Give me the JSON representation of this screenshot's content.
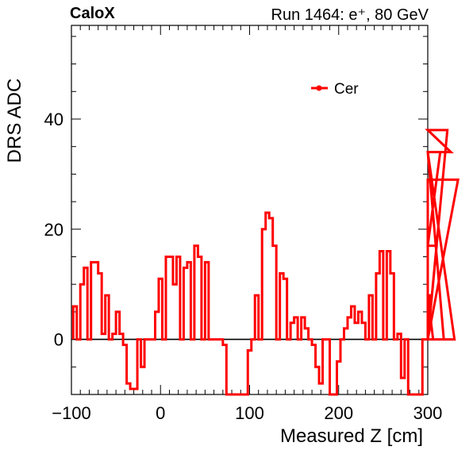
{
  "header": {
    "experiment": "CaloX",
    "run": "Run 1464: e⁺, 80 GeV"
  },
  "chart_data": {
    "type": "line",
    "title": "",
    "xlabel": "Measured Z [cm]",
    "ylabel": "DRS ADC",
    "xlim": [
      -100,
      300
    ],
    "ylim": [
      -10,
      57
    ],
    "x_ticks": [
      -100,
      0,
      100,
      200,
      300
    ],
    "x_tick_labels": [
      "−100",
      "0",
      "100",
      "200",
      "300"
    ],
    "y_ticks": [
      0,
      20,
      40
    ],
    "y_tick_labels": [
      "0",
      "20",
      "40"
    ],
    "grid": false,
    "legend": {
      "position": "top-right"
    },
    "step_width": 4,
    "series": [
      {
        "name": "Cer",
        "color": "#ff0000",
        "style": "step",
        "x_start": -98,
        "values": [
          6,
          0,
          10,
          13,
          0,
          14,
          14,
          12,
          1,
          8,
          0,
          1,
          5,
          1,
          -1,
          -8,
          -9,
          -9,
          0,
          -5,
          0,
          0,
          0,
          5,
          11,
          0,
          15,
          15,
          10,
          15,
          0,
          13,
          14,
          0,
          17,
          15,
          0,
          14,
          0,
          0,
          0,
          0,
          -1,
          -10,
          -10,
          -10,
          -10,
          -10,
          -10,
          -2,
          0,
          8,
          0,
          20,
          23,
          22,
          17,
          0,
          12,
          11,
          0,
          3,
          4,
          0,
          4,
          2,
          0,
          -1,
          -5,
          -8,
          0,
          0,
          -10,
          -10,
          -4,
          0,
          2,
          4,
          6,
          3,
          5,
          3,
          0,
          8,
          0,
          12,
          16,
          0,
          16,
          12,
          0,
          1,
          -7,
          0,
          -10,
          -10,
          -10,
          -10,
          0,
          0,
          8,
          0,
          17,
          34,
          0,
          38,
          34,
          0,
          29
        ]
      }
    ]
  }
}
